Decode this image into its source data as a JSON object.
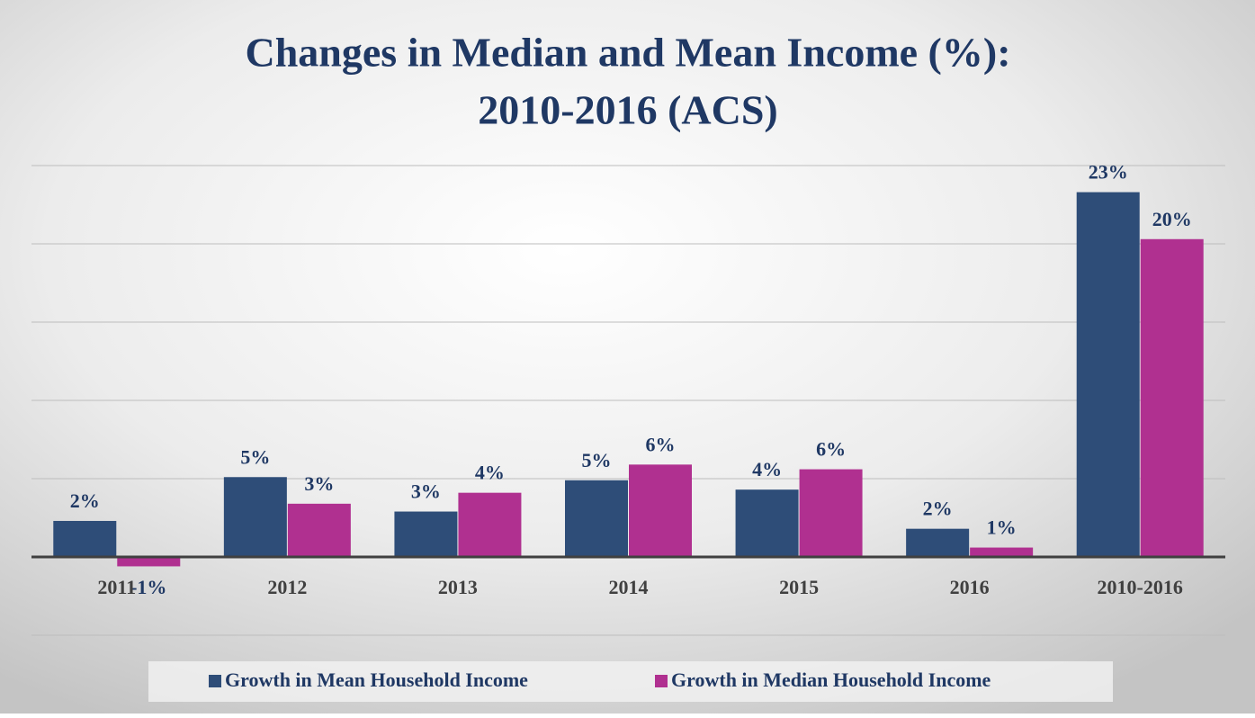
{
  "chart_data": {
    "type": "bar",
    "title": "Changes in Median and Mean Income (%):",
    "subtitle": "2010-2016 (ACS)",
    "categories": [
      "2011",
      "2012",
      "2013",
      "2014",
      "2015",
      "2016",
      "2010-2016"
    ],
    "series": [
      {
        "name": "Growth in Mean Household Income",
        "color": "#2e4d78",
        "values": [
          2.3,
          5.1,
          2.9,
          4.9,
          4.3,
          1.8,
          23.3
        ],
        "value_labels": [
          "2%",
          "5%",
          "3%",
          "5%",
          "4%",
          "2%",
          "23%"
        ]
      },
      {
        "name": "Growth in Median Household Income",
        "color": "#b03090",
        "values": [
          -0.6,
          3.4,
          4.1,
          5.9,
          5.6,
          0.6,
          20.3
        ],
        "value_labels": [
          "-1%",
          "3%",
          "4%",
          "6%",
          "6%",
          "1%",
          "20%"
        ]
      }
    ],
    "ylim": [
      -5,
      25
    ],
    "yticks": [
      -5,
      0,
      5,
      10,
      15,
      20,
      25
    ],
    "grid": true,
    "legend": "bottom"
  }
}
